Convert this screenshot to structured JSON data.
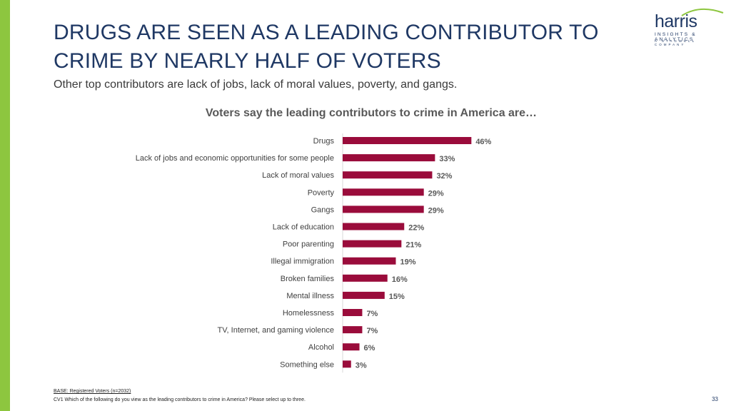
{
  "header": {
    "title": "DRUGS ARE SEEN AS A LEADING CONTRIBUTOR TO CRIME BY NEARLY HALF OF VOTERS",
    "subtitle": "Other top contributors are lack of jobs, lack of moral values, poverty, and gangs."
  },
  "logo": {
    "wordmark": "harris",
    "tagline": "INSIGHTS & ANALYTICS",
    "subtag": "A STAGWELL COMPANY"
  },
  "colors": {
    "bar": "#9a0c3b",
    "accent": "#8dc63f",
    "title": "#1f3864"
  },
  "chart_data": {
    "type": "bar",
    "orientation": "horizontal",
    "title": "Voters say the leading contributors to crime in America are…",
    "categories": [
      "Drugs",
      "Lack of jobs and economic opportunities for some people",
      "Lack of moral values",
      "Poverty",
      "Gangs",
      "Lack of education",
      "Poor parenting",
      "Illegal immigration",
      "Broken families",
      "Mental illness",
      "Homelessness",
      "TV, Internet, and gaming violence",
      "Alcohol",
      "Something else"
    ],
    "values": [
      46,
      33,
      32,
      29,
      29,
      22,
      21,
      19,
      16,
      15,
      7,
      7,
      6,
      3
    ],
    "value_labels": [
      "46%",
      "33%",
      "32%",
      "29%",
      "29%",
      "22%",
      "21%",
      "19%",
      "16%",
      "15%",
      "7%",
      "7%",
      "6%",
      "3%"
    ],
    "xlim": [
      0,
      100
    ],
    "unit": "%"
  },
  "footer": {
    "base": "BASE: Registered Voters (n=2032)",
    "question": "CV1 Which of the following do you view as the leading contributors to crime in America? Please select up to three.",
    "page_number": "33"
  }
}
